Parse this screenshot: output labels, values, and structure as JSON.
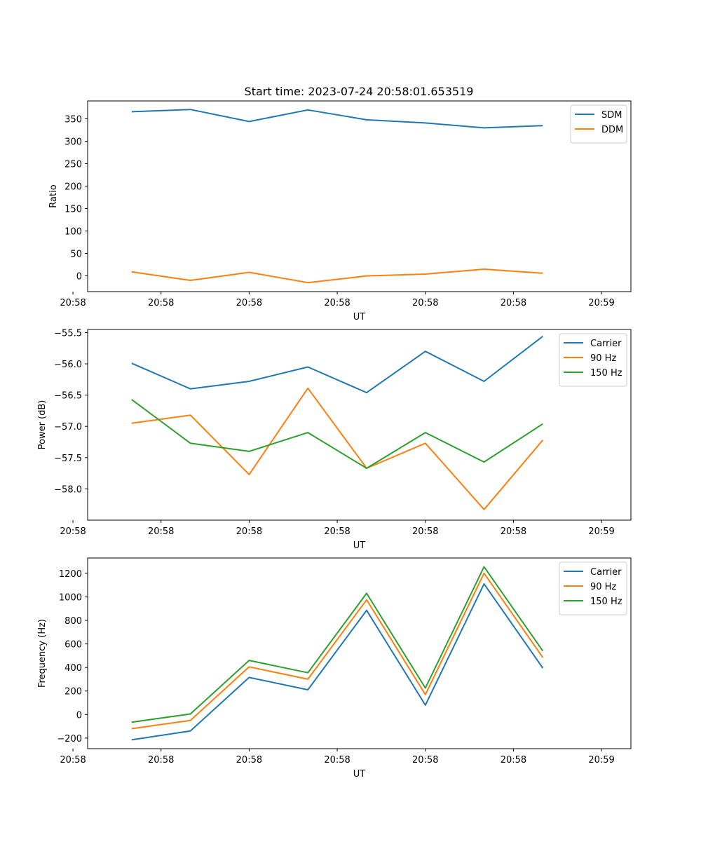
{
  "title": "Start time: 2023-07-24 20:58:01.653519",
  "colors": {
    "c0": "#1f77b4",
    "c1": "#ff7f0e",
    "c2": "#2ca02c"
  },
  "chart_data": [
    {
      "type": "line",
      "xlabel": "UT",
      "ylabel": "Ratio",
      "x": [
        1,
        2,
        3,
        4,
        5,
        6,
        7,
        8
      ],
      "xlim": [
        0.25,
        9.5
      ],
      "x_ticks": [
        0,
        1.5,
        3,
        4.5,
        6,
        7.5,
        9
      ],
      "x_tick_labels": [
        "20:58",
        "20:58",
        "20:58",
        "20:58",
        "20:58",
        "20:58",
        "20:59"
      ],
      "ylim": [
        -35,
        390
      ],
      "y_ticks": [
        0,
        50,
        100,
        150,
        200,
        250,
        300,
        350
      ],
      "y_tick_labels": [
        "0",
        "50",
        "100",
        "150",
        "200",
        "250",
        "300",
        "350"
      ],
      "legend_position": "top-right",
      "series": [
        {
          "name": "SDM",
          "color": "#1f77b4",
          "values": [
            366,
            371,
            344,
            370,
            348,
            341,
            330,
            335
          ]
        },
        {
          "name": "DDM",
          "color": "#ff7f0e",
          "values": [
            9,
            -10,
            8,
            -15,
            0,
            4,
            15,
            6
          ]
        }
      ]
    },
    {
      "type": "line",
      "xlabel": "UT",
      "ylabel": "Power (dB)",
      "x": [
        1,
        2,
        3,
        4,
        5,
        6,
        7,
        8
      ],
      "xlim": [
        0.25,
        9.5
      ],
      "x_ticks": [
        0,
        1.5,
        3,
        4.5,
        6,
        7.5,
        9
      ],
      "x_tick_labels": [
        "20:58",
        "20:58",
        "20:58",
        "20:58",
        "20:58",
        "20:58",
        "20:59"
      ],
      "ylim": [
        -58.5,
        -55.45
      ],
      "y_ticks": [
        -58.0,
        -57.5,
        -57.0,
        -56.5,
        -56.0,
        -55.5
      ],
      "y_tick_labels": [
        "−58.0",
        "−57.5",
        "−57.0",
        "−56.5",
        "−56.0",
        "−55.5"
      ],
      "legend_position": "top-right",
      "series": [
        {
          "name": "Carrier",
          "color": "#1f77b4",
          "values": [
            -55.99,
            -56.4,
            -56.28,
            -56.05,
            -56.46,
            -55.8,
            -56.28,
            -55.56
          ]
        },
        {
          "name": "90 Hz",
          "color": "#ff7f0e",
          "values": [
            -56.95,
            -56.82,
            -57.77,
            -56.39,
            -57.67,
            -57.27,
            -58.33,
            -57.22
          ]
        },
        {
          "name": "150 Hz",
          "color": "#2ca02c",
          "values": [
            -56.57,
            -57.27,
            -57.4,
            -57.1,
            -57.67,
            -57.1,
            -57.57,
            -56.96
          ]
        }
      ]
    },
    {
      "type": "line",
      "xlabel": "UT",
      "ylabel": "Frequency (Hz)",
      "x": [
        1,
        2,
        3,
        4,
        5,
        6,
        7,
        8
      ],
      "xlim": [
        0.25,
        9.5
      ],
      "x_ticks": [
        0,
        1.5,
        3,
        4.5,
        6,
        7.5,
        9
      ],
      "x_tick_labels": [
        "20:58",
        "20:58",
        "20:58",
        "20:58",
        "20:58",
        "20:58",
        "20:59"
      ],
      "ylim": [
        -290,
        1330
      ],
      "y_ticks": [
        -200,
        0,
        200,
        400,
        600,
        800,
        1000,
        1200
      ],
      "y_tick_labels": [
        "−200",
        "0",
        "200",
        "400",
        "600",
        "800",
        "1000",
        "1200"
      ],
      "legend_position": "top-right",
      "series": [
        {
          "name": "Carrier",
          "color": "#1f77b4",
          "values": [
            -215,
            -140,
            315,
            210,
            885,
            80,
            1110,
            395
          ]
        },
        {
          "name": "90 Hz",
          "color": "#ff7f0e",
          "values": [
            -120,
            -50,
            405,
            300,
            975,
            170,
            1200,
            485
          ]
        },
        {
          "name": "150 Hz",
          "color": "#2ca02c",
          "values": [
            -65,
            5,
            460,
            355,
            1030,
            225,
            1255,
            540
          ]
        }
      ]
    }
  ]
}
